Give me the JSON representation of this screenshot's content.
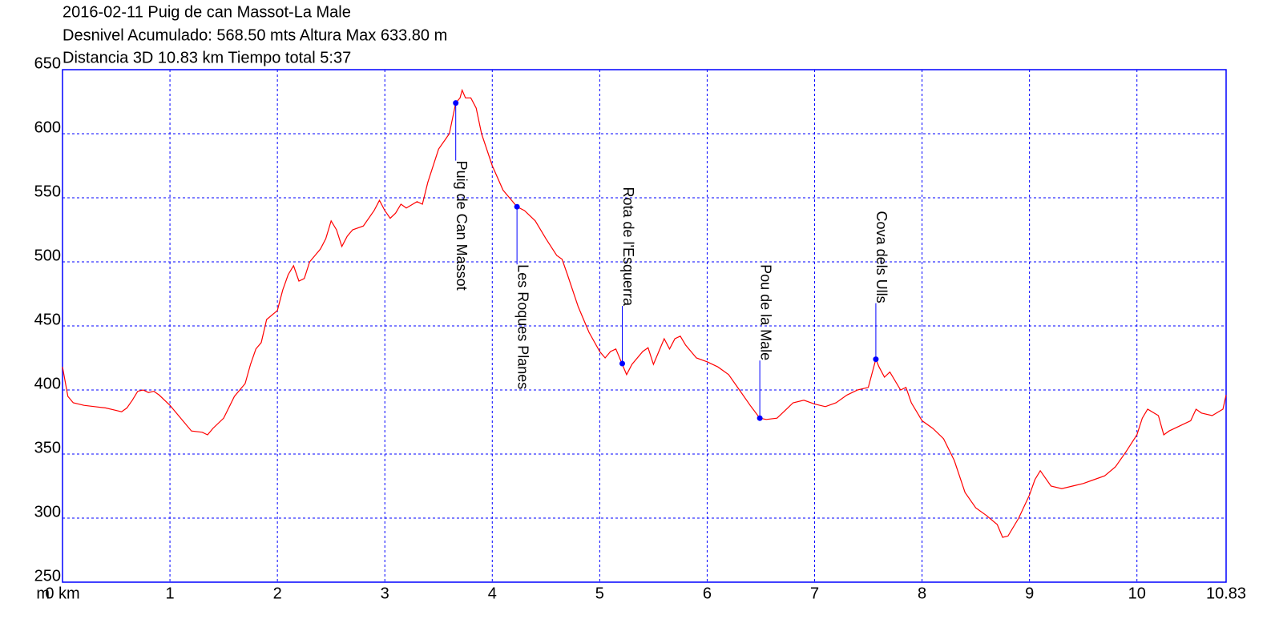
{
  "chart_data": {
    "type": "line",
    "title": "2016-02-11 Puig de can Massot-La Male",
    "subtitle": "Desnivel Acumulado: 568.50 mts  Altura Max 633.80 m",
    "subtitle2": "Distancia 3D 10.83 km  Tiempo total 5:37",
    "y_unit": "m",
    "xlim": [
      0,
      10.83
    ],
    "ylim": [
      250,
      650
    ],
    "xticks": [
      {
        "value": 0,
        "label": "0 km"
      },
      1,
      2,
      3,
      4,
      5,
      6,
      7,
      8,
      9,
      10,
      10.83
    ],
    "yticks": [
      250,
      300,
      350,
      400,
      450,
      500,
      550,
      600,
      650
    ],
    "grid": true,
    "series": [
      {
        "name": "Altura",
        "color": "#ff0000",
        "x": [
          0,
          0.05,
          0.1,
          0.2,
          0.3,
          0.4,
          0.5,
          0.55,
          0.6,
          0.65,
          0.7,
          0.75,
          0.8,
          0.85,
          0.9,
          1.0,
          1.1,
          1.2,
          1.3,
          1.35,
          1.4,
          1.5,
          1.6,
          1.65,
          1.7,
          1.75,
          1.8,
          1.85,
          1.9,
          2.0,
          2.05,
          2.1,
          2.15,
          2.2,
          2.25,
          2.3,
          2.4,
          2.45,
          2.5,
          2.55,
          2.6,
          2.65,
          2.7,
          2.8,
          2.9,
          2.95,
          3.0,
          3.05,
          3.1,
          3.15,
          3.2,
          3.3,
          3.35,
          3.4,
          3.5,
          3.6,
          3.66,
          3.7,
          3.72,
          3.75,
          3.8,
          3.85,
          3.9,
          4.0,
          4.1,
          4.2,
          4.23,
          4.3,
          4.4,
          4.5,
          4.6,
          4.65,
          4.7,
          4.8,
          4.9,
          5.0,
          5.05,
          5.1,
          5.15,
          5.2,
          5.25,
          5.3,
          5.4,
          5.45,
          5.5,
          5.55,
          5.6,
          5.65,
          5.7,
          5.75,
          5.8,
          5.9,
          6.0,
          6.1,
          6.2,
          6.3,
          6.4,
          6.49,
          6.55,
          6.65,
          6.7,
          6.8,
          6.9,
          7.0,
          7.1,
          7.2,
          7.3,
          7.4,
          7.5,
          7.57,
          7.6,
          7.65,
          7.7,
          7.8,
          7.85,
          7.9,
          8.0,
          8.1,
          8.2,
          8.3,
          8.4,
          8.5,
          8.6,
          8.7,
          8.75,
          8.8,
          8.9,
          9.0,
          9.05,
          9.1,
          9.2,
          9.3,
          9.4,
          9.5,
          9.6,
          9.7,
          9.8,
          9.9,
          10.0,
          10.05,
          10.1,
          10.2,
          10.25,
          10.3,
          10.4,
          10.5,
          10.55,
          10.6,
          10.7,
          10.8,
          10.83
        ],
        "values": [
          418,
          395,
          390,
          388,
          387,
          386,
          384,
          383,
          386,
          392,
          399,
          400,
          398,
          399,
          396,
          388,
          378,
          368,
          367,
          365,
          370,
          378,
          395,
          400,
          405,
          420,
          432,
          437,
          455,
          462,
          478,
          490,
          497,
          485,
          487,
          500,
          510,
          518,
          532,
          525,
          512,
          520,
          525,
          528,
          540,
          548,
          540,
          534,
          538,
          545,
          542,
          547,
          545,
          562,
          588,
          600,
          624,
          628,
          634,
          628,
          628,
          620,
          600,
          575,
          556,
          546,
          543,
          540,
          532,
          518,
          505,
          502,
          490,
          465,
          445,
          430,
          425,
          430,
          432,
          422,
          412,
          420,
          430,
          433,
          420,
          430,
          440,
          432,
          440,
          442,
          435,
          425,
          422,
          418,
          412,
          400,
          388,
          378,
          377,
          378,
          382,
          390,
          392,
          389,
          387,
          390,
          396,
          400,
          402,
          424,
          418,
          410,
          414,
          400,
          402,
          390,
          376,
          370,
          362,
          345,
          320,
          308,
          302,
          295,
          285,
          286,
          300,
          318,
          330,
          337,
          325,
          323,
          325,
          327,
          330,
          333,
          340,
          352,
          365,
          378,
          385,
          380,
          365,
          368,
          372,
          376,
          385,
          382,
          380,
          385,
          396
        ]
      }
    ],
    "annotations": [
      {
        "text": "Puig de Can Massot",
        "x": 3.66,
        "y": 624
      },
      {
        "text": "Les Roques Planes",
        "x": 4.23,
        "y": 543
      },
      {
        "text": "Rota de l'Esquerra",
        "x": 5.21,
        "y": 420.6
      },
      {
        "text": "Pou de la Male",
        "x": 6.49,
        "y": 378
      },
      {
        "text": "Cova dels Ulls",
        "x": 7.57,
        "y": 424
      }
    ]
  }
}
